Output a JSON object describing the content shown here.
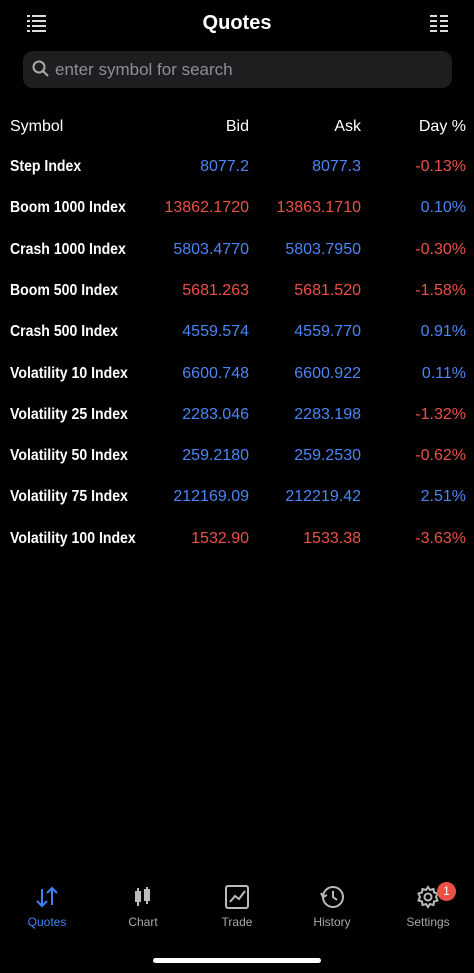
{
  "header": {
    "title": "Quotes"
  },
  "search": {
    "placeholder": "enter symbol for search"
  },
  "table": {
    "columns": [
      "Symbol",
      "Bid",
      "Ask",
      "Day %"
    ],
    "up_color": "#4a86f5",
    "down_color": "#ec5148",
    "rows": [
      {
        "symbol": "Step Index",
        "bid": "8077.2",
        "ask": "8077.3",
        "day": "-0.13%",
        "bid_dir": "up",
        "ask_dir": "up",
        "day_dir": "down"
      },
      {
        "symbol": "Boom 1000 Index",
        "bid": "13862.1720",
        "ask": "13863.1710",
        "day": "0.10%",
        "bid_dir": "down",
        "ask_dir": "down",
        "day_dir": "up"
      },
      {
        "symbol": "Crash 1000 Index",
        "bid": "5803.4770",
        "ask": "5803.7950",
        "day": "-0.30%",
        "bid_dir": "up",
        "ask_dir": "up",
        "day_dir": "down"
      },
      {
        "symbol": "Boom 500 Index",
        "bid": "5681.263",
        "ask": "5681.520",
        "day": "-1.58%",
        "bid_dir": "down",
        "ask_dir": "down",
        "day_dir": "down"
      },
      {
        "symbol": "Crash 500 Index",
        "bid": "4559.574",
        "ask": "4559.770",
        "day": "0.91%",
        "bid_dir": "up",
        "ask_dir": "up",
        "day_dir": "up"
      },
      {
        "symbol": "Volatility 10 Index",
        "bid": "6600.748",
        "ask": "6600.922",
        "day": "0.11%",
        "bid_dir": "up",
        "ask_dir": "up",
        "day_dir": "up"
      },
      {
        "symbol": "Volatility 25 Index",
        "bid": "2283.046",
        "ask": "2283.198",
        "day": "-1.32%",
        "bid_dir": "up",
        "ask_dir": "up",
        "day_dir": "down"
      },
      {
        "symbol": "Volatility 50 Index",
        "bid": "259.2180",
        "ask": "259.2530",
        "day": "-0.62%",
        "bid_dir": "up",
        "ask_dir": "up",
        "day_dir": "down"
      },
      {
        "symbol": "Volatility 75 Index",
        "bid": "212169.09",
        "ask": "212219.42",
        "day": "2.51%",
        "bid_dir": "up",
        "ask_dir": "up",
        "day_dir": "up"
      },
      {
        "symbol": "Volatility 100 Index",
        "bid": "1532.90",
        "ask": "1533.38",
        "day": "-3.63%",
        "bid_dir": "down",
        "ask_dir": "down",
        "day_dir": "down"
      }
    ]
  },
  "tabs": [
    {
      "label": "Quotes"
    },
    {
      "label": "Chart"
    },
    {
      "label": "Trade"
    },
    {
      "label": "History"
    },
    {
      "label": "Settings",
      "badge": "1"
    }
  ]
}
